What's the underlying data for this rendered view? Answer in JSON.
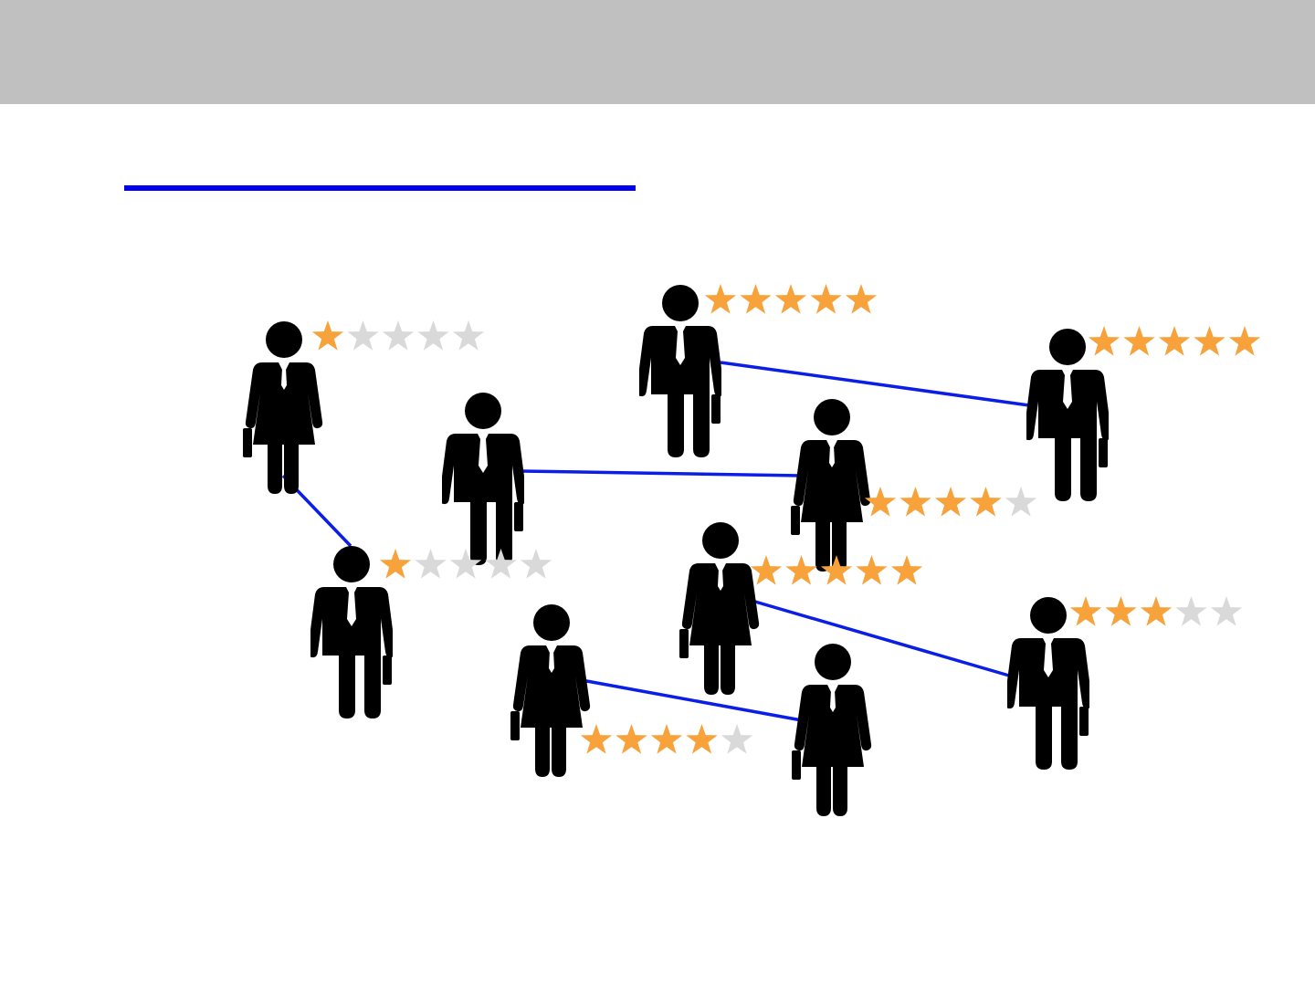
{
  "colors": {
    "header_band": "#c0c0c0",
    "title_rule": "#0000ee",
    "link": "#0a1ee6",
    "figure": "#000000",
    "star_filled": "#f7a23b",
    "star_empty": "#d9d9d9"
  },
  "icons": {
    "person_male": "businessman-icon",
    "person_female": "businesswoman-icon",
    "rating": "star-icon"
  },
  "people": [
    {
      "id": "p1",
      "gender": "female",
      "rating": 1,
      "max_rating": 5
    },
    {
      "id": "p2",
      "gender": "male",
      "rating": 5,
      "max_rating": 5
    },
    {
      "id": "p3",
      "gender": "male",
      "rating": 5,
      "max_rating": 5
    },
    {
      "id": "p4",
      "gender": "male",
      "rating": 0,
      "max_rating": 0
    },
    {
      "id": "p5",
      "gender": "female",
      "rating": 4,
      "max_rating": 5
    },
    {
      "id": "p6",
      "gender": "male",
      "rating": 1,
      "max_rating": 5
    },
    {
      "id": "p7",
      "gender": "female",
      "rating": 5,
      "max_rating": 5
    },
    {
      "id": "p8",
      "gender": "male",
      "rating": 3,
      "max_rating": 5
    },
    {
      "id": "p9",
      "gender": "female",
      "rating": 4,
      "max_rating": 5
    },
    {
      "id": "p10",
      "gender": "female",
      "rating": 0,
      "max_rating": 0
    }
  ],
  "links": [
    {
      "from": "p1",
      "to": "p6"
    },
    {
      "from": "p2",
      "to": "p3"
    },
    {
      "from": "p4",
      "to": "p5"
    },
    {
      "from": "p7",
      "to": "p8"
    },
    {
      "from": "p9",
      "to": "p10"
    }
  ]
}
